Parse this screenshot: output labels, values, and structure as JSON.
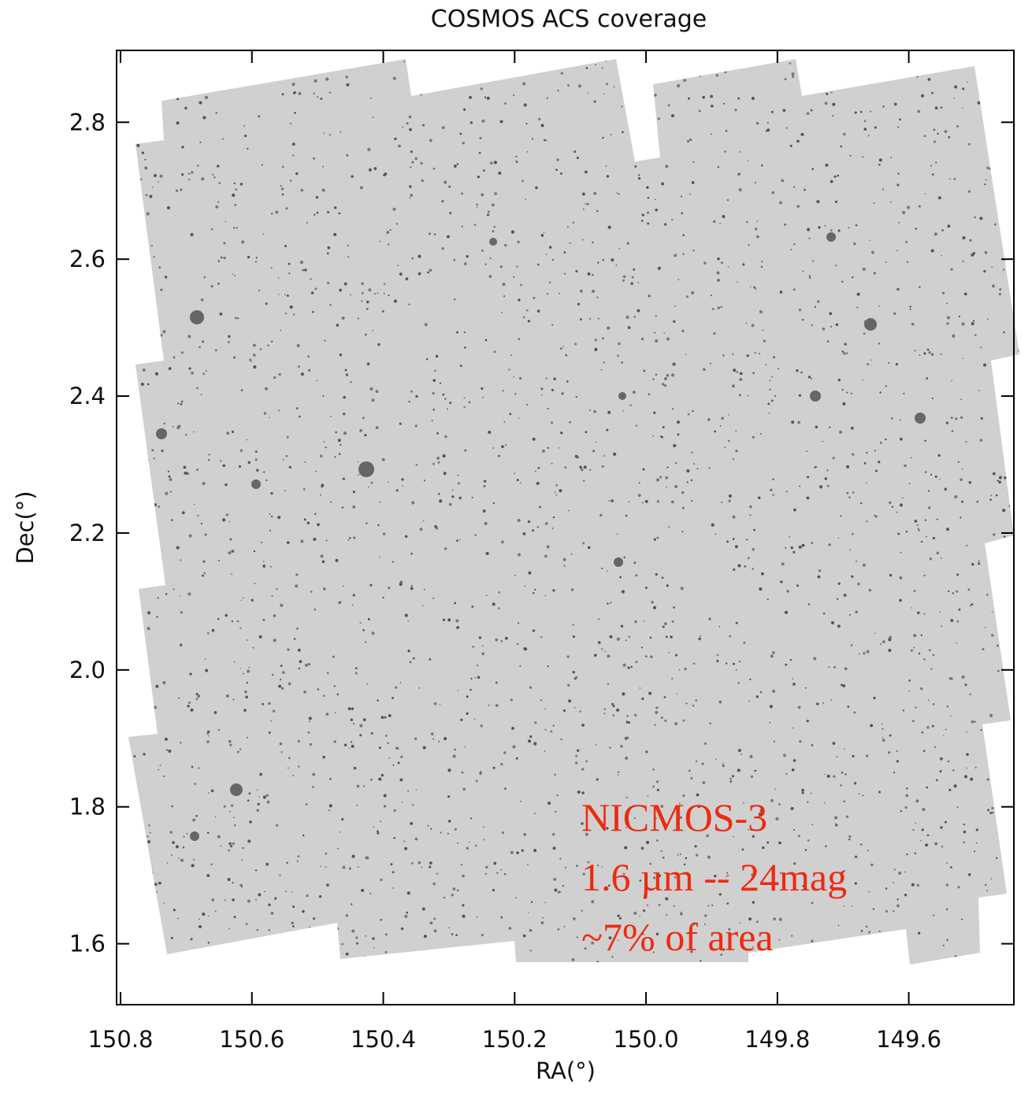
{
  "chart_data": {
    "type": "coverage-map",
    "title": "COSMOS ACS coverage",
    "x_label": "RA(°)",
    "y_label": "Dec(°)",
    "xlim": [
      150.806,
      149.44
    ],
    "ylim": [
      1.511,
      2.905
    ],
    "xticks": [
      150.8,
      150.6,
      150.4,
      150.2,
      {
        "value": 150,
        "label": "150.0"
      },
      149.8,
      149.6
    ],
    "yticks": [
      1.6,
      1.8,
      {
        "value": 2,
        "label": "2.0"
      },
      2.2,
      2.4,
      2.6,
      2.8
    ],
    "annotations": [
      "NICMOS-3",
      "1.6 µm -- 24mag",
      "~7% of area"
    ],
    "color": "#d0d0d0"
  }
}
